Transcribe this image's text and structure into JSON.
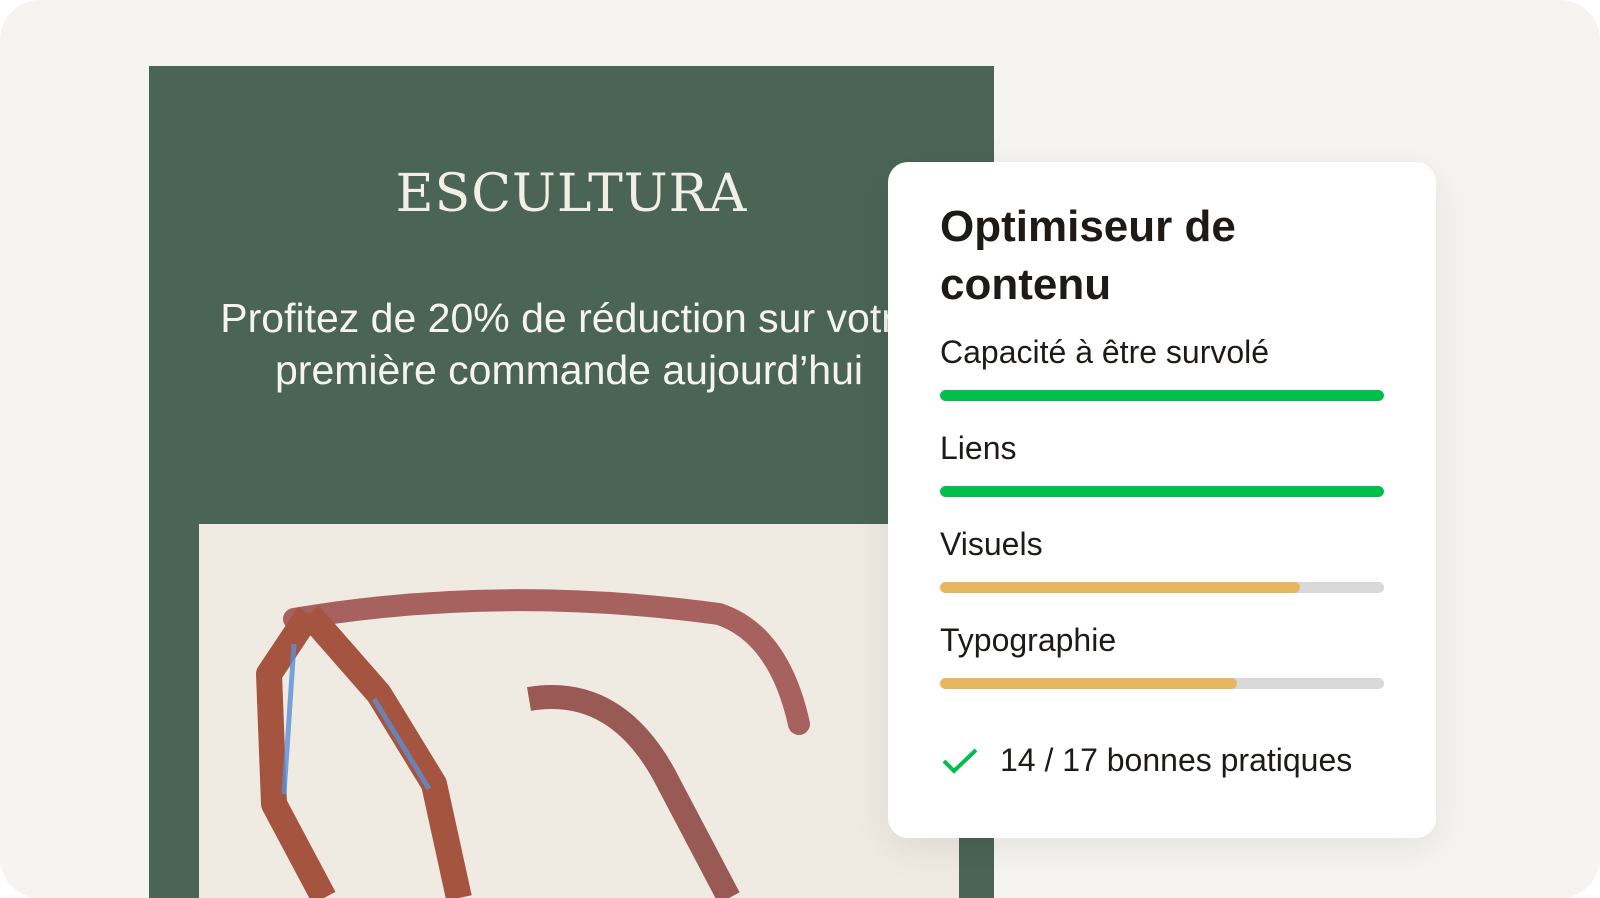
{
  "email": {
    "brand": "ESCULTURA",
    "headline": "Profitez de 20% de réduction sur votre première commande aujourd’hui"
  },
  "optimizer": {
    "title": "Optimiseur de contenu",
    "metrics": [
      {
        "label": "Capacité à être survolé",
        "progress": 1.0,
        "color": "#00c04b"
      },
      {
        "label": "Liens",
        "progress": 1.0,
        "color": "#00c04b"
      },
      {
        "label": "Visuels",
        "progress": 0.81,
        "color": "#e6b65c"
      },
      {
        "label": "Typographie",
        "progress": 0.67,
        "color": "#e6b65c"
      }
    ],
    "summary": "14 / 17 bonnes pratiques",
    "summary_icon": "check-icon"
  },
  "colors": {
    "email_bg": "#4a6455",
    "success": "#00c04b",
    "warning": "#e6b65c",
    "track": "#d9d9d9"
  }
}
